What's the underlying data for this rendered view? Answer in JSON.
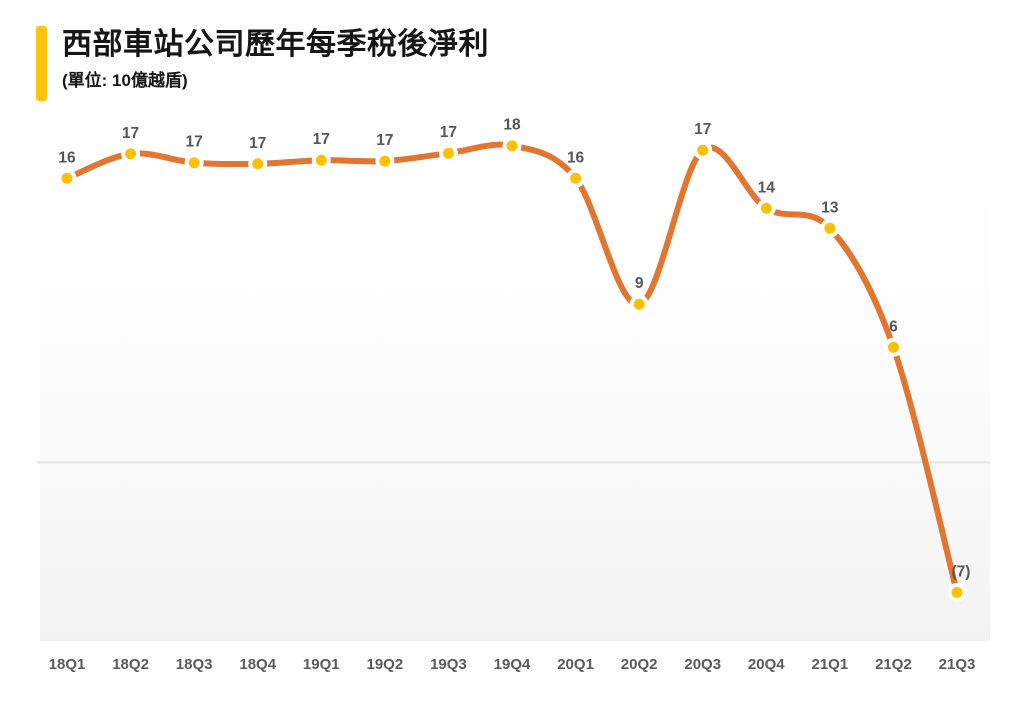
{
  "header": {
    "title": "西部車站公司歷年每季稅後淨利",
    "subtitle": "(單位: 10億越盾)",
    "accent_color": "#FFC20E"
  },
  "chart_data": {
    "type": "line",
    "smooth": true,
    "title": "西部車站公司歷年每季稅後淨利",
    "subtitle": "(單位: 10億越盾)",
    "legend_position": "none",
    "categories": [
      "18Q1",
      "18Q2",
      "18Q3",
      "18Q4",
      "19Q1",
      "19Q2",
      "19Q3",
      "19Q4",
      "20Q1",
      "20Q2",
      "20Q3",
      "20Q4",
      "21Q1",
      "21Q2",
      "21Q3"
    ],
    "values": [
      16,
      17,
      17,
      17,
      17,
      17,
      17,
      18,
      16,
      9,
      17,
      14,
      13,
      6,
      -7
    ],
    "point_labels": [
      "16",
      "17",
      "17",
      "17",
      "17",
      "17",
      "17",
      "18",
      "16",
      "9",
      "17",
      "14",
      "13",
      "6",
      "(7)"
    ],
    "values_precise_estimate": [
      15.9,
      17.27,
      16.77,
      16.71,
      16.91,
      16.86,
      17.3,
      17.72,
      15.9,
      8.85,
      17.47,
      14.22,
      13.1,
      6.44,
      -7.28
    ],
    "ylim": [
      -10,
      20
    ],
    "gridline_values": [
      0
    ],
    "grid": "single horizontal zero line, no axis ticks or y-axis labels",
    "marker_style": "filled circle with white halo that breaks the line near each point",
    "colors": {
      "line": "#E2752F",
      "marker": "#FFC000",
      "marker_halo": "#FFFFFF",
      "data_label": "#55565A",
      "axis_label": "#5A5A5A",
      "gridline": "#E3E3E3",
      "plot_tint": "#F6F6F6"
    }
  }
}
